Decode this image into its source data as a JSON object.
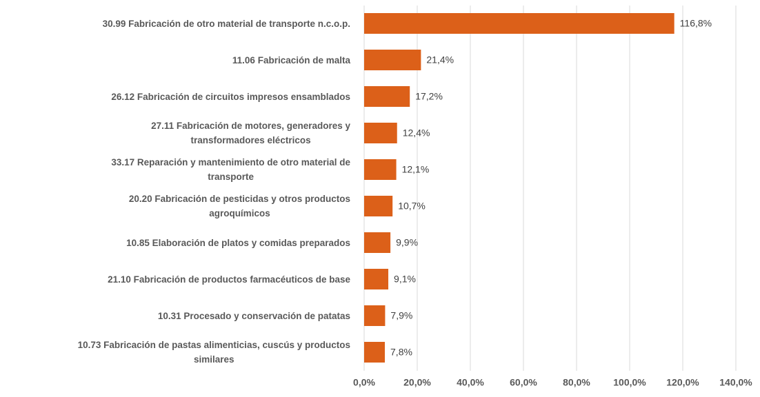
{
  "chart_data": {
    "type": "bar",
    "orientation": "horizontal",
    "categories": [
      "30.99 Fabricación de otro material de transporte n.c.o.p.",
      "11.06 Fabricación de malta",
      "26.12 Fabricación de circuitos impresos ensamblados",
      "27.11 Fabricación de motores, generadores y\ntransformadores eléctricos",
      "33.17 Reparación y mantenimiento de otro material de\ntransporte",
      "20.20 Fabricación de pesticidas y otros productos\nagroquímicos",
      "10.85 Elaboración de platos y comidas preparados",
      "21.10 Fabricación de productos farmacéuticos de base",
      "10.31 Procesado y conservación de patatas",
      "10.73 Fabricación de pastas alimenticias, cuscús y productos\nsimilares"
    ],
    "values": [
      116.8,
      21.4,
      17.2,
      12.4,
      12.1,
      10.7,
      9.9,
      9.1,
      7.9,
      7.8
    ],
    "value_labels": [
      "116,8%",
      "21,4%",
      "17,2%",
      "12,4%",
      "12,1%",
      "10,7%",
      "9,9%",
      "9,1%",
      "7,9%",
      "7,8%"
    ],
    "color": "#dc6019",
    "xlim": [
      0,
      140
    ],
    "xticks": [
      {
        "value": 0,
        "label": "0,0%"
      },
      {
        "value": 20,
        "label": "20,0%"
      },
      {
        "value": 40,
        "label": "40,0%"
      },
      {
        "value": 60,
        "label": "60,0%"
      },
      {
        "value": 80,
        "label": "80,0%"
      },
      {
        "value": 100,
        "label": "100,0%"
      },
      {
        "value": 120,
        "label": "120,0%"
      },
      {
        "value": 140,
        "label": "140,0%"
      }
    ],
    "grid": true
  }
}
